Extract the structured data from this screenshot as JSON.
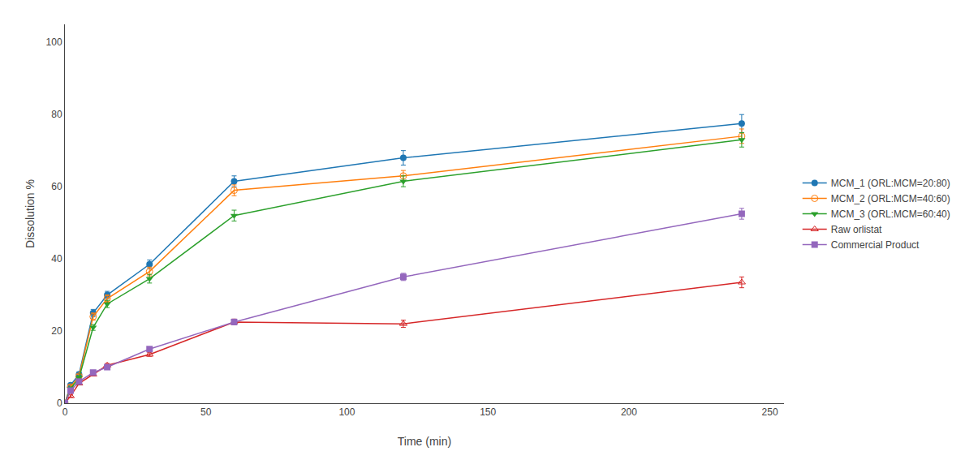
{
  "chart_data": {
    "type": "line",
    "x": [
      0,
      2,
      5,
      10,
      15,
      30,
      60,
      120,
      240
    ],
    "series": [
      {
        "name": "MCM_1 (ORL:MCM=20:80)",
        "marker": "circle",
        "values": [
          0,
          5.0,
          8.0,
          25.0,
          30.0,
          38.5,
          61.5,
          68.0,
          77.5
        ],
        "errors": [
          0,
          0.5,
          0.7,
          1.0,
          1.0,
          1.2,
          1.5,
          2.0,
          2.5
        ]
      },
      {
        "name": "MCM_2 (ORL:MCM=40:60)",
        "marker": "circle-open",
        "values": [
          0,
          4.5,
          7.5,
          24.0,
          29.0,
          36.5,
          59.0,
          63.0,
          74.0
        ],
        "errors": [
          0,
          0.5,
          0.5,
          1.0,
          1.0,
          1.2,
          1.5,
          1.5,
          2.0
        ]
      },
      {
        "name": "MCM_3 (ORL:MCM=60:40)",
        "marker": "triangle-down",
        "values": [
          0,
          4.0,
          7.0,
          21.0,
          27.5,
          34.5,
          52.0,
          61.5,
          73.0
        ],
        "errors": [
          0,
          0.5,
          0.5,
          0.8,
          1.0,
          1.2,
          1.5,
          1.5,
          2.0
        ]
      },
      {
        "name": "Raw orlistat",
        "marker": "triangle-up-open",
        "values": [
          0,
          2.0,
          5.5,
          8.0,
          10.5,
          13.5,
          22.5,
          22.0,
          33.5
        ],
        "errors": [
          0,
          0.3,
          0.4,
          0.4,
          0.5,
          0.5,
          0.8,
          1.0,
          1.5
        ]
      },
      {
        "name": "Commercial Product",
        "marker": "square",
        "values": [
          0,
          3.5,
          6.0,
          8.5,
          10.0,
          15.0,
          22.5,
          35.0,
          52.5
        ],
        "errors": [
          0,
          0.3,
          0.4,
          0.5,
          0.5,
          0.6,
          0.8,
          1.0,
          1.5
        ]
      }
    ],
    "xlabel": "Time (min)",
    "ylabel": "Dissolution %",
    "xlim": [
      0,
      255
    ],
    "ylim": [
      0,
      105
    ],
    "xticks": [
      0,
      50,
      100,
      150,
      200,
      250
    ],
    "yticks": [
      0,
      20,
      40,
      60,
      80,
      100
    ],
    "grid": false,
    "legend": "right"
  }
}
